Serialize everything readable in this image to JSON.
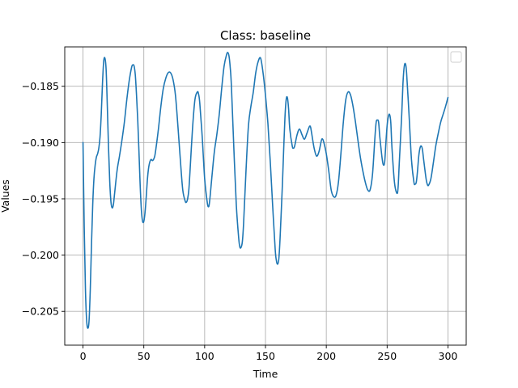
{
  "chart_data": {
    "type": "line",
    "title": "Class: baseline",
    "xlabel": "Time",
    "ylabel": "Values",
    "xlim": [
      -15,
      315
    ],
    "ylim": [
      -0.208,
      -0.1815
    ],
    "xticks": [
      0,
      50,
      100,
      150,
      200,
      250,
      300
    ],
    "xtick_labels": [
      "0",
      "50",
      "100",
      "150",
      "200",
      "250",
      "300"
    ],
    "yticks": [
      -0.205,
      -0.2,
      -0.195,
      -0.19,
      -0.185
    ],
    "ytick_labels": [
      "−0.205",
      "−0.200",
      "−0.195",
      "−0.190",
      "−0.185"
    ],
    "grid": true,
    "legend": {
      "placement": "top-right",
      "entries": []
    },
    "series": [
      {
        "name": "baseline",
        "color": "#1f77b4",
        "points": [
          [
            0,
            -0.19
          ],
          [
            1,
            -0.1975
          ],
          [
            2,
            -0.203
          ],
          [
            3,
            -0.2058
          ],
          [
            4,
            -0.2065
          ],
          [
            5,
            -0.2058
          ],
          [
            6,
            -0.203
          ],
          [
            7,
            -0.199
          ],
          [
            8,
            -0.1955
          ],
          [
            9,
            -0.1932
          ],
          [
            10,
            -0.192
          ],
          [
            11,
            -0.1913
          ],
          [
            12,
            -0.191
          ],
          [
            13,
            -0.1905
          ],
          [
            14,
            -0.1895
          ],
          [
            15,
            -0.1875
          ],
          [
            16,
            -0.1848
          ],
          [
            17,
            -0.1828
          ],
          [
            18,
            -0.1825
          ],
          [
            19,
            -0.1835
          ],
          [
            20,
            -0.1868
          ],
          [
            21,
            -0.1905
          ],
          [
            22,
            -0.1935
          ],
          [
            23,
            -0.1953
          ],
          [
            24,
            -0.1958
          ],
          [
            25,
            -0.1955
          ],
          [
            26,
            -0.1945
          ],
          [
            28,
            -0.1925
          ],
          [
            30,
            -0.1912
          ],
          [
            32,
            -0.1898
          ],
          [
            34,
            -0.1882
          ],
          [
            36,
            -0.1862
          ],
          [
            38,
            -0.1845
          ],
          [
            40,
            -0.1833
          ],
          [
            41,
            -0.1831
          ],
          [
            42,
            -0.1832
          ],
          [
            43,
            -0.184
          ],
          [
            44,
            -0.1858
          ],
          [
            45,
            -0.188
          ],
          [
            46,
            -0.1908
          ],
          [
            47,
            -0.1938
          ],
          [
            48,
            -0.196
          ],
          [
            49,
            -0.197
          ],
          [
            50,
            -0.197
          ],
          [
            51,
            -0.1962
          ],
          [
            52,
            -0.1948
          ],
          [
            53,
            -0.1932
          ],
          [
            54,
            -0.1922
          ],
          [
            55,
            -0.1917
          ],
          [
            56,
            -0.1915
          ],
          [
            57,
            -0.1916
          ],
          [
            58,
            -0.1915
          ],
          [
            59,
            -0.1912
          ],
          [
            60,
            -0.1905
          ],
          [
            62,
            -0.1888
          ],
          [
            64,
            -0.1868
          ],
          [
            66,
            -0.1852
          ],
          [
            68,
            -0.1843
          ],
          [
            70,
            -0.1838
          ],
          [
            72,
            -0.1838
          ],
          [
            74,
            -0.1844
          ],
          [
            76,
            -0.1858
          ],
          [
            78,
            -0.1885
          ],
          [
            80,
            -0.1915
          ],
          [
            82,
            -0.1942
          ],
          [
            84,
            -0.1952
          ],
          [
            85,
            -0.1953
          ],
          [
            86,
            -0.195
          ],
          [
            87,
            -0.1942
          ],
          [
            88,
            -0.1925
          ],
          [
            90,
            -0.1888
          ],
          [
            92,
            -0.1862
          ],
          [
            94,
            -0.1855
          ],
          [
            95,
            -0.1857
          ],
          [
            96,
            -0.1865
          ],
          [
            98,
            -0.1895
          ],
          [
            100,
            -0.1932
          ],
          [
            102,
            -0.1952
          ],
          [
            103,
            -0.1957
          ],
          [
            104,
            -0.1953
          ],
          [
            106,
            -0.193
          ],
          [
            108,
            -0.1908
          ],
          [
            110,
            -0.1893
          ],
          [
            112,
            -0.1875
          ],
          [
            114,
            -0.1852
          ],
          [
            116,
            -0.1832
          ],
          [
            118,
            -0.1822
          ],
          [
            119,
            -0.182
          ],
          [
            120,
            -0.1823
          ],
          [
            121,
            -0.1833
          ],
          [
            122,
            -0.185
          ],
          [
            124,
            -0.1905
          ],
          [
            126,
            -0.1955
          ],
          [
            128,
            -0.1985
          ],
          [
            129,
            -0.1993
          ],
          [
            130,
            -0.1993
          ],
          [
            131,
            -0.1988
          ],
          [
            132,
            -0.1972
          ],
          [
            134,
            -0.1925
          ],
          [
            136,
            -0.1885
          ],
          [
            138,
            -0.1868
          ],
          [
            140,
            -0.1855
          ],
          [
            142,
            -0.1838
          ],
          [
            144,
            -0.1828
          ],
          [
            146,
            -0.1825
          ],
          [
            148,
            -0.1838
          ],
          [
            150,
            -0.1858
          ],
          [
            152,
            -0.1883
          ],
          [
            154,
            -0.1918
          ],
          [
            156,
            -0.1958
          ],
          [
            158,
            -0.1995
          ],
          [
            159,
            -0.2005
          ],
          [
            160,
            -0.2008
          ],
          [
            161,
            -0.2003
          ],
          [
            162,
            -0.1985
          ],
          [
            164,
            -0.1935
          ],
          [
            165,
            -0.1905
          ],
          [
            166,
            -0.1878
          ],
          [
            167,
            -0.1862
          ],
          [
            168,
            -0.186
          ],
          [
            169,
            -0.187
          ],
          [
            170,
            -0.1888
          ],
          [
            172,
            -0.1903
          ],
          [
            173,
            -0.1905
          ],
          [
            174,
            -0.1903
          ],
          [
            176,
            -0.1893
          ],
          [
            178,
            -0.1888
          ],
          [
            180,
            -0.1893
          ],
          [
            182,
            -0.1897
          ],
          [
            184,
            -0.1892
          ],
          [
            186,
            -0.1886
          ],
          [
            187,
            -0.1886
          ],
          [
            188,
            -0.1892
          ],
          [
            190,
            -0.1905
          ],
          [
            192,
            -0.1912
          ],
          [
            194,
            -0.1908
          ],
          [
            196,
            -0.1898
          ],
          [
            197,
            -0.1897
          ],
          [
            198,
            -0.19
          ],
          [
            200,
            -0.191
          ],
          [
            202,
            -0.1925
          ],
          [
            204,
            -0.1942
          ],
          [
            206,
            -0.1948
          ],
          [
            208,
            -0.1947
          ],
          [
            210,
            -0.1935
          ],
          [
            212,
            -0.191
          ],
          [
            214,
            -0.1882
          ],
          [
            216,
            -0.1862
          ],
          [
            218,
            -0.1855
          ],
          [
            220,
            -0.1858
          ],
          [
            222,
            -0.1868
          ],
          [
            224,
            -0.1882
          ],
          [
            226,
            -0.1898
          ],
          [
            228,
            -0.1913
          ],
          [
            230,
            -0.1925
          ],
          [
            232,
            -0.1935
          ],
          [
            234,
            -0.1942
          ],
          [
            236,
            -0.1942
          ],
          [
            238,
            -0.1928
          ],
          [
            240,
            -0.1895
          ],
          [
            241,
            -0.1882
          ],
          [
            242,
            -0.188
          ],
          [
            243,
            -0.1882
          ],
          [
            244,
            -0.1895
          ],
          [
            246,
            -0.1915
          ],
          [
            247,
            -0.192
          ],
          [
            248,
            -0.1917
          ],
          [
            249,
            -0.19
          ],
          [
            250,
            -0.1885
          ],
          [
            251,
            -0.1877
          ],
          [
            252,
            -0.1875
          ],
          [
            253,
            -0.1882
          ],
          [
            254,
            -0.1905
          ],
          [
            256,
            -0.1935
          ],
          [
            258,
            -0.1945
          ],
          [
            259,
            -0.194
          ],
          [
            260,
            -0.1918
          ],
          [
            262,
            -0.1875
          ],
          [
            263,
            -0.1848
          ],
          [
            264,
            -0.1833
          ],
          [
            265,
            -0.183
          ],
          [
            266,
            -0.1838
          ],
          [
            268,
            -0.1875
          ],
          [
            270,
            -0.1915
          ],
          [
            272,
            -0.1935
          ],
          [
            273,
            -0.1937
          ],
          [
            274,
            -0.1935
          ],
          [
            275,
            -0.1925
          ],
          [
            276,
            -0.1912
          ],
          [
            277,
            -0.1905
          ],
          [
            278,
            -0.1903
          ],
          [
            279,
            -0.1906
          ],
          [
            280,
            -0.1915
          ],
          [
            282,
            -0.1932
          ],
          [
            283,
            -0.1937
          ],
          [
            284,
            -0.1938
          ],
          [
            286,
            -0.1932
          ],
          [
            288,
            -0.1918
          ],
          [
            290,
            -0.1903
          ],
          [
            292,
            -0.1892
          ],
          [
            294,
            -0.1882
          ],
          [
            296,
            -0.1875
          ],
          [
            298,
            -0.1868
          ],
          [
            300,
            -0.186
          ]
        ]
      }
    ]
  }
}
